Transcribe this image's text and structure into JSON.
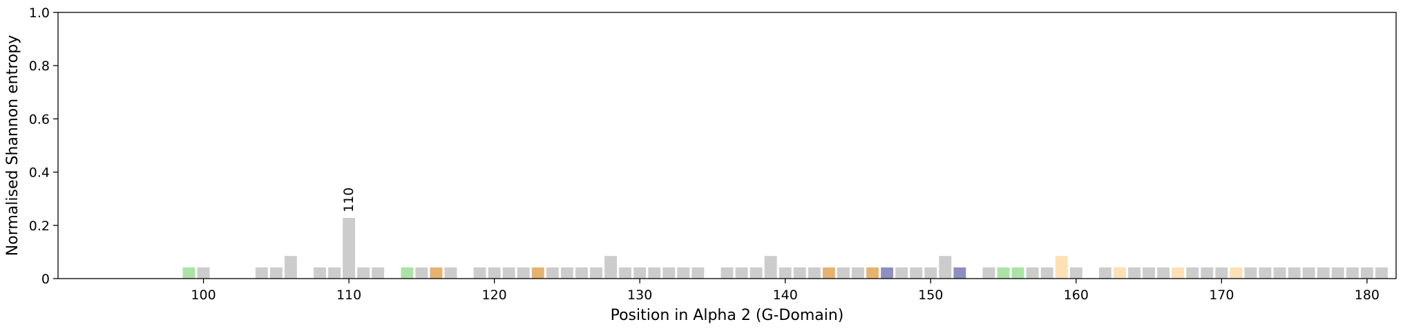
{
  "chart_data": {
    "type": "bar",
    "xlabel": "Position in Alpha 2 (G-Domain)",
    "ylabel": "Normalised Shannon entropy",
    "xlim": [
      90,
      182
    ],
    "ylim": [
      0,
      1
    ],
    "xticks": [
      100,
      110,
      120,
      130,
      140,
      150,
      160,
      170,
      180
    ],
    "yticks": [
      "0",
      "0.2",
      "0.4",
      "0.6",
      "0.8",
      "1.0"
    ],
    "grid": false,
    "legend": "none",
    "bars": [
      {
        "x": 99,
        "y": 0.042,
        "color": "#abe3a6"
      },
      {
        "x": 100,
        "y": 0.042,
        "color": "#cccccc"
      },
      {
        "x": 104,
        "y": 0.042,
        "color": "#cccccc"
      },
      {
        "x": 105,
        "y": 0.042,
        "color": "#cccccc"
      },
      {
        "x": 106,
        "y": 0.085,
        "color": "#cccccc"
      },
      {
        "x": 108,
        "y": 0.042,
        "color": "#cccccc"
      },
      {
        "x": 109,
        "y": 0.042,
        "color": "#cccccc"
      },
      {
        "x": 110,
        "y": 0.228,
        "color": "#cccccc",
        "label": "110"
      },
      {
        "x": 111,
        "y": 0.042,
        "color": "#cccccc"
      },
      {
        "x": 112,
        "y": 0.042,
        "color": "#cccccc"
      },
      {
        "x": 114,
        "y": 0.042,
        "color": "#abe3a6"
      },
      {
        "x": 115,
        "y": 0.042,
        "color": "#cccccc"
      },
      {
        "x": 116,
        "y": 0.042,
        "color": "#e5b370"
      },
      {
        "x": 117,
        "y": 0.042,
        "color": "#cccccc"
      },
      {
        "x": 119,
        "y": 0.042,
        "color": "#cccccc"
      },
      {
        "x": 120,
        "y": 0.042,
        "color": "#cccccc"
      },
      {
        "x": 121,
        "y": 0.042,
        "color": "#cccccc"
      },
      {
        "x": 122,
        "y": 0.042,
        "color": "#cccccc"
      },
      {
        "x": 123,
        "y": 0.042,
        "color": "#e5b370"
      },
      {
        "x": 124,
        "y": 0.042,
        "color": "#cccccc"
      },
      {
        "x": 125,
        "y": 0.042,
        "color": "#cccccc"
      },
      {
        "x": 126,
        "y": 0.042,
        "color": "#cccccc"
      },
      {
        "x": 127,
        "y": 0.042,
        "color": "#cccccc"
      },
      {
        "x": 128,
        "y": 0.085,
        "color": "#cccccc"
      },
      {
        "x": 129,
        "y": 0.042,
        "color": "#cccccc"
      },
      {
        "x": 130,
        "y": 0.042,
        "color": "#cccccc"
      },
      {
        "x": 131,
        "y": 0.042,
        "color": "#cccccc"
      },
      {
        "x": 132,
        "y": 0.042,
        "color": "#cccccc"
      },
      {
        "x": 133,
        "y": 0.042,
        "color": "#cccccc"
      },
      {
        "x": 134,
        "y": 0.042,
        "color": "#cccccc"
      },
      {
        "x": 136,
        "y": 0.042,
        "color": "#cccccc"
      },
      {
        "x": 137,
        "y": 0.042,
        "color": "#cccccc"
      },
      {
        "x": 138,
        "y": 0.042,
        "color": "#cccccc"
      },
      {
        "x": 139,
        "y": 0.085,
        "color": "#cccccc"
      },
      {
        "x": 140,
        "y": 0.042,
        "color": "#cccccc"
      },
      {
        "x": 141,
        "y": 0.042,
        "color": "#cccccc"
      },
      {
        "x": 142,
        "y": 0.042,
        "color": "#cccccc"
      },
      {
        "x": 143,
        "y": 0.042,
        "color": "#e5b370"
      },
      {
        "x": 144,
        "y": 0.042,
        "color": "#cccccc"
      },
      {
        "x": 145,
        "y": 0.042,
        "color": "#cccccc"
      },
      {
        "x": 146,
        "y": 0.042,
        "color": "#e5b370"
      },
      {
        "x": 147,
        "y": 0.042,
        "color": "#8e8fc0"
      },
      {
        "x": 148,
        "y": 0.042,
        "color": "#cccccc"
      },
      {
        "x": 149,
        "y": 0.042,
        "color": "#cccccc"
      },
      {
        "x": 150,
        "y": 0.042,
        "color": "#cccccc"
      },
      {
        "x": 151,
        "y": 0.085,
        "color": "#cccccc"
      },
      {
        "x": 152,
        "y": 0.042,
        "color": "#8e8fc0"
      },
      {
        "x": 154,
        "y": 0.042,
        "color": "#cccccc"
      },
      {
        "x": 155,
        "y": 0.042,
        "color": "#abe3a6"
      },
      {
        "x": 156,
        "y": 0.042,
        "color": "#abe3a6"
      },
      {
        "x": 157,
        "y": 0.042,
        "color": "#cccccc"
      },
      {
        "x": 158,
        "y": 0.042,
        "color": "#cccccc"
      },
      {
        "x": 159,
        "y": 0.085,
        "color": "#fde0b4"
      },
      {
        "x": 160,
        "y": 0.042,
        "color": "#cccccc"
      },
      {
        "x": 162,
        "y": 0.042,
        "color": "#cccccc"
      },
      {
        "x": 163,
        "y": 0.042,
        "color": "#fde0b4"
      },
      {
        "x": 164,
        "y": 0.042,
        "color": "#cccccc"
      },
      {
        "x": 165,
        "y": 0.042,
        "color": "#cccccc"
      },
      {
        "x": 166,
        "y": 0.042,
        "color": "#cccccc"
      },
      {
        "x": 167,
        "y": 0.042,
        "color": "#fde0b4"
      },
      {
        "x": 168,
        "y": 0.042,
        "color": "#cccccc"
      },
      {
        "x": 169,
        "y": 0.042,
        "color": "#cccccc"
      },
      {
        "x": 170,
        "y": 0.042,
        "color": "#cccccc"
      },
      {
        "x": 171,
        "y": 0.042,
        "color": "#fde0b4"
      },
      {
        "x": 172,
        "y": 0.042,
        "color": "#cccccc"
      },
      {
        "x": 173,
        "y": 0.042,
        "color": "#cccccc"
      },
      {
        "x": 174,
        "y": 0.042,
        "color": "#cccccc"
      },
      {
        "x": 175,
        "y": 0.042,
        "color": "#cccccc"
      },
      {
        "x": 176,
        "y": 0.042,
        "color": "#cccccc"
      },
      {
        "x": 177,
        "y": 0.042,
        "color": "#cccccc"
      },
      {
        "x": 178,
        "y": 0.042,
        "color": "#cccccc"
      },
      {
        "x": 179,
        "y": 0.042,
        "color": "#cccccc"
      },
      {
        "x": 180,
        "y": 0.042,
        "color": "#cccccc"
      },
      {
        "x": 181,
        "y": 0.042,
        "color": "#cccccc"
      }
    ]
  }
}
